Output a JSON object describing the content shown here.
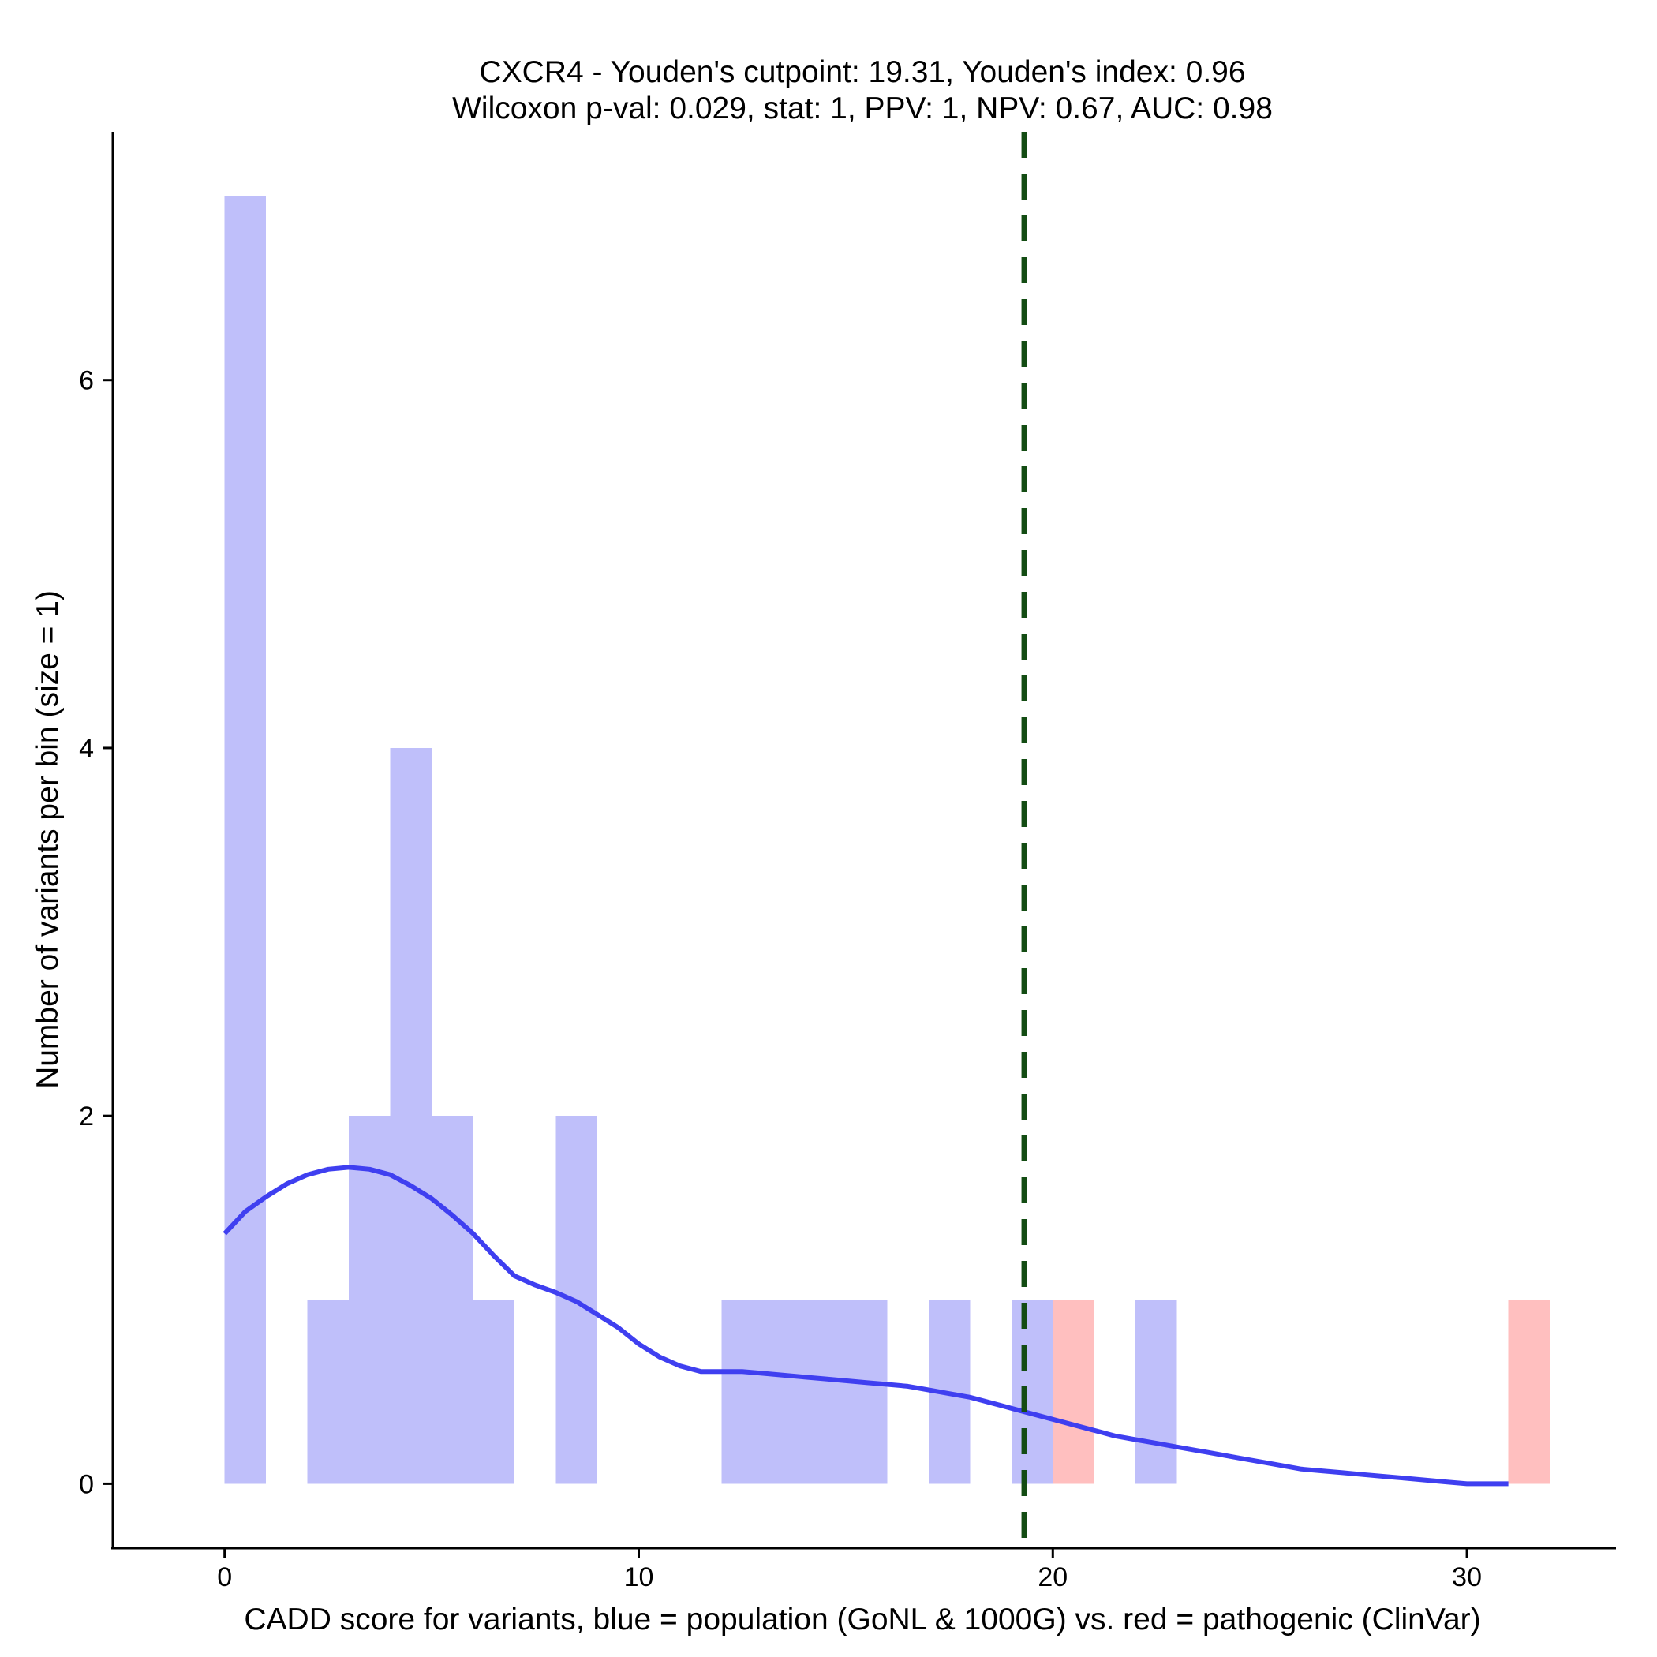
{
  "chart_data": {
    "type": "bar",
    "title_line1": "CXCR4 - Youden's cutpoint: 19.31, Youden's index: 0.96",
    "title_line2": "Wilcoxon p-val: 0.029, stat: 1, PPV: 1, NPV: 0.67, AUC: 0.98",
    "xlabel": "CADD score for variants, blue = population (GoNL & 1000G) vs. red = pathogenic (ClinVar)",
    "ylabel": "Number of variants per bin (size = 1)",
    "xlim": [
      -2.7,
      33.6
    ],
    "ylim": [
      -0.35,
      7.35
    ],
    "x_ticks": [
      0,
      10,
      20,
      30
    ],
    "x_tick_labels": [
      "0",
      "10",
      "20",
      "30"
    ],
    "y_ticks": [
      0,
      2,
      4,
      6
    ],
    "y_tick_labels": [
      "0",
      "2",
      "4",
      "6"
    ],
    "bin_size": 1,
    "cutpoint": 19.31,
    "series": [
      {
        "name": "population (GoNL & 1000G)",
        "color": "#bfbffa",
        "bins": [
          {
            "start": 0,
            "count": 7
          },
          {
            "start": 2,
            "count": 1
          },
          {
            "start": 3,
            "count": 2
          },
          {
            "start": 4,
            "count": 4
          },
          {
            "start": 5,
            "count": 2
          },
          {
            "start": 6,
            "count": 1
          },
          {
            "start": 8,
            "count": 2
          },
          {
            "start": 12,
            "count": 1
          },
          {
            "start": 13,
            "count": 1
          },
          {
            "start": 14,
            "count": 1
          },
          {
            "start": 15,
            "count": 1
          },
          {
            "start": 17,
            "count": 1
          },
          {
            "start": 19,
            "count": 1
          },
          {
            "start": 22,
            "count": 1
          }
        ]
      },
      {
        "name": "pathogenic (ClinVar)",
        "color": "#ffbfbf",
        "bins": [
          {
            "start": 20,
            "count": 1
          },
          {
            "start": 31,
            "count": 1
          }
        ]
      }
    ],
    "density_curve": {
      "color": "#3f3ff0",
      "x": [
        0,
        0.5,
        1,
        1.5,
        2,
        2.5,
        3,
        3.5,
        4,
        4.5,
        5,
        5.5,
        6,
        6.5,
        7,
        7.5,
        8,
        8.5,
        9,
        9.5,
        10,
        10.5,
        11,
        11.5,
        12,
        12.5,
        13,
        13.5,
        14,
        14.5,
        15,
        15.5,
        16,
        16.5,
        17,
        17.5,
        18,
        18.5,
        19,
        19.5,
        20,
        20.5,
        21,
        21.5,
        22,
        22.5,
        23,
        23.5,
        24,
        24.5,
        25,
        25.5,
        26,
        26.5,
        27,
        27.5,
        28,
        28.5,
        29,
        29.5,
        30,
        30.5,
        31
      ],
      "y": [
        1.36,
        1.48,
        1.56,
        1.63,
        1.68,
        1.71,
        1.72,
        1.71,
        1.68,
        1.62,
        1.55,
        1.46,
        1.36,
        1.24,
        1.13,
        1.08,
        1.04,
        0.99,
        0.92,
        0.85,
        0.76,
        0.69,
        0.64,
        0.61,
        0.61,
        0.61,
        0.6,
        0.59,
        0.58,
        0.57,
        0.56,
        0.55,
        0.54,
        0.53,
        0.51,
        0.49,
        0.47,
        0.44,
        0.41,
        0.38,
        0.35,
        0.32,
        0.29,
        0.26,
        0.24,
        0.22,
        0.2,
        0.18,
        0.16,
        0.14,
        0.12,
        0.1,
        0.08,
        0.07,
        0.06,
        0.05,
        0.04,
        0.03,
        0.02,
        0.01,
        0.0,
        0.0,
        0.0
      ]
    },
    "cutpoint_line_color": "#134c13"
  }
}
